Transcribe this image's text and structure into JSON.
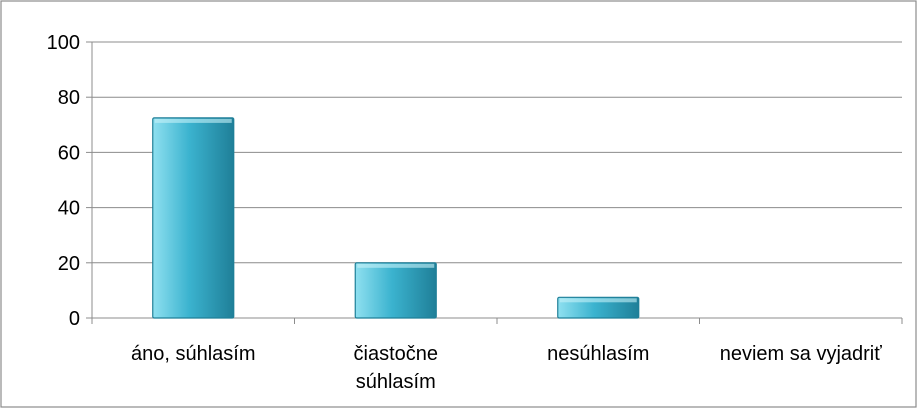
{
  "chart_data": {
    "type": "bar",
    "categories": [
      [
        "áno, súhlasím"
      ],
      [
        "čiastočne",
        "súhlasím"
      ],
      [
        "nesúhlasím"
      ],
      [
        "neviem sa vyjadriť"
      ]
    ],
    "values": [
      72.5,
      20,
      7.5,
      0
    ],
    "ylim": [
      0,
      100
    ],
    "yticks": [
      0,
      20,
      40,
      60,
      80,
      100
    ],
    "grid": true,
    "legend": "none",
    "bar_color": "#3bb3cf",
    "bar_color_light": "#8fe0f0",
    "bar_color_dark": "#1f7f98"
  }
}
